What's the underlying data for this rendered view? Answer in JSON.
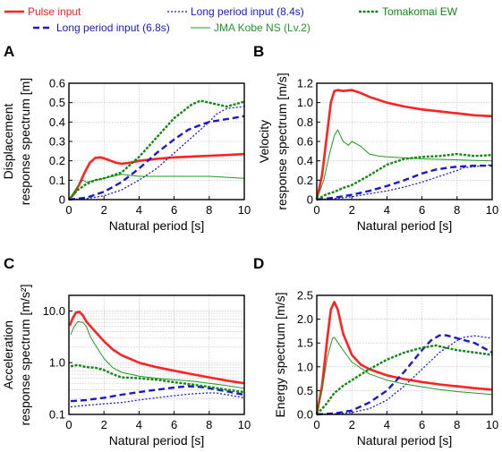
{
  "legend": {
    "entries": [
      {
        "label": "Pulse input",
        "series": "pulse"
      },
      {
        "label": "Long period input (6.8s)",
        "series": "lp68"
      },
      {
        "label": "Long period input (8.4s)",
        "series": "lp84"
      },
      {
        "label": "JMA Kobe NS (Lv.2)",
        "series": "kobe"
      },
      {
        "label": "Tomakomai EW",
        "series": "toma"
      }
    ]
  },
  "styles": {
    "pulse": {
      "color": "#ff2222",
      "width": 2.6,
      "dash": ""
    },
    "lp68": {
      "color": "#1a1acc",
      "width": 2.4,
      "dash": "7,4"
    },
    "lp84": {
      "color": "#1a1acc",
      "width": 1.3,
      "dash": "2,2"
    },
    "kobe": {
      "color": "#229922",
      "width": 1.0,
      "dash": ""
    },
    "toma": {
      "color": "#118811",
      "width": 2.4,
      "dash": "3,1.6"
    }
  },
  "chart_data": [
    {
      "panel": "A",
      "type": "line",
      "xlabel": "Natural period [s]",
      "ylabel": [
        "Displacement",
        "response spectrum [m]"
      ],
      "xlim": [
        0,
        10
      ],
      "ylim": [
        0,
        0.6
      ],
      "yscale": "linear",
      "xticks": [
        0,
        2,
        4,
        6,
        8,
        10
      ],
      "yticks": [
        0,
        0.1,
        0.2,
        0.3,
        0.4,
        0.5,
        0.6
      ],
      "ytick_labels": [
        "0",
        "0.1",
        "0.2",
        "0.3",
        "0.4",
        "0.5",
        "0.6"
      ],
      "grid": true,
      "series": [
        {
          "name": "Pulse input",
          "key": "pulse",
          "x": [
            0,
            0.3,
            0.6,
            0.9,
            1.2,
            1.5,
            1.8,
            2.1,
            2.4,
            2.7,
            3.0,
            3.5,
            4,
            5,
            6,
            7,
            8,
            9,
            10
          ],
          "y": [
            0,
            0.03,
            0.08,
            0.14,
            0.19,
            0.215,
            0.218,
            0.21,
            0.2,
            0.19,
            0.185,
            0.19,
            0.2,
            0.21,
            0.218,
            0.222,
            0.226,
            0.23,
            0.235
          ]
        },
        {
          "name": "Long period input (6.8s)",
          "key": "lp68",
          "x": [
            0,
            1,
            2,
            3,
            4,
            5,
            6,
            6.8,
            7.5,
            8,
            9,
            10
          ],
          "y": [
            0,
            0.01,
            0.04,
            0.09,
            0.16,
            0.24,
            0.31,
            0.36,
            0.385,
            0.4,
            0.415,
            0.43
          ]
        },
        {
          "name": "Long period input (8.4s)",
          "key": "lp84",
          "x": [
            0,
            1,
            2,
            3,
            4,
            5,
            6,
            7,
            8,
            8.4,
            9,
            10
          ],
          "y": [
            0,
            0.005,
            0.02,
            0.05,
            0.1,
            0.16,
            0.24,
            0.32,
            0.4,
            0.44,
            0.47,
            0.48
          ]
        },
        {
          "name": "JMA Kobe NS (Lv.2)",
          "key": "kobe",
          "x": [
            0,
            0.5,
            0.8,
            1,
            1.5,
            2,
            3,
            4,
            5,
            6,
            7,
            8,
            9,
            10
          ],
          "y": [
            0,
            0.07,
            0.1,
            0.09,
            0.1,
            0.11,
            0.13,
            0.12,
            0.12,
            0.12,
            0.12,
            0.12,
            0.115,
            0.11
          ]
        },
        {
          "name": "Tomakomai EW",
          "key": "toma",
          "x": [
            0,
            0.5,
            1,
            1.5,
            2,
            2.5,
            3,
            3.5,
            4,
            5,
            6,
            7,
            7.5,
            8,
            9,
            10
          ],
          "y": [
            0,
            0.05,
            0.08,
            0.1,
            0.11,
            0.125,
            0.14,
            0.18,
            0.22,
            0.32,
            0.42,
            0.49,
            0.51,
            0.5,
            0.48,
            0.505
          ]
        }
      ]
    },
    {
      "panel": "B",
      "type": "line",
      "xlabel": "Natural period [s]",
      "ylabel": [
        "Velocity",
        "response spectrum [m/s]"
      ],
      "xlim": [
        0,
        10
      ],
      "ylim": [
        0,
        1.2
      ],
      "yscale": "linear",
      "xticks": [
        0,
        2,
        4,
        6,
        8,
        10
      ],
      "yticks": [
        0,
        0.2,
        0.4,
        0.6,
        0.8,
        1.0,
        1.2
      ],
      "ytick_labels": [
        "0",
        "0.2",
        "0.4",
        "0.6",
        "0.8",
        "1.0",
        "1.2"
      ],
      "grid": true,
      "series": [
        {
          "name": "Pulse input",
          "key": "pulse",
          "x": [
            0,
            0.3,
            0.6,
            0.8,
            1,
            1.2,
            1.5,
            2,
            2.5,
            3,
            4,
            5,
            6,
            7,
            8,
            9,
            10
          ],
          "y": [
            0,
            0.25,
            0.7,
            1.0,
            1.12,
            1.13,
            1.12,
            1.13,
            1.1,
            1.06,
            1.0,
            0.96,
            0.93,
            0.91,
            0.89,
            0.87,
            0.86
          ]
        },
        {
          "name": "Long period input (6.8s)",
          "key": "lp68",
          "x": [
            0,
            1,
            2,
            3,
            4,
            5,
            6,
            6.8,
            7.5,
            8,
            9,
            10
          ],
          "y": [
            0,
            0.02,
            0.05,
            0.09,
            0.14,
            0.2,
            0.27,
            0.31,
            0.33,
            0.34,
            0.35,
            0.35
          ]
        },
        {
          "name": "Long period input (8.4s)",
          "key": "lp84",
          "x": [
            0,
            1,
            2,
            3,
            4,
            5,
            6,
            7,
            8,
            8.4,
            9,
            10
          ],
          "y": [
            0,
            0.01,
            0.03,
            0.06,
            0.09,
            0.13,
            0.18,
            0.24,
            0.3,
            0.33,
            0.34,
            0.36
          ]
        },
        {
          "name": "JMA Kobe NS (Lv.2)",
          "key": "kobe",
          "x": [
            0,
            0.4,
            0.7,
            1,
            1.2,
            1.5,
            1.8,
            2,
            2.5,
            3,
            3.5,
            4,
            5,
            6,
            8,
            10
          ],
          "y": [
            0,
            0.2,
            0.45,
            0.66,
            0.72,
            0.6,
            0.56,
            0.6,
            0.55,
            0.47,
            0.45,
            0.44,
            0.43,
            0.42,
            0.41,
            0.4
          ]
        },
        {
          "name": "Tomakomai EW",
          "key": "toma",
          "x": [
            0,
            0.5,
            1,
            1.5,
            2,
            3,
            4,
            5,
            6,
            7,
            8,
            9,
            10
          ],
          "y": [
            0,
            0.05,
            0.08,
            0.12,
            0.15,
            0.25,
            0.36,
            0.42,
            0.44,
            0.45,
            0.47,
            0.45,
            0.46
          ]
        }
      ]
    },
    {
      "panel": "C",
      "type": "line",
      "xlabel": "Natural period [s]",
      "ylabel": [
        "Acceleration",
        "response spectrum [m/s²]"
      ],
      "xlim": [
        0,
        10
      ],
      "ylim": [
        0.1,
        20
      ],
      "yscale": "log",
      "xticks": [
        0,
        2,
        4,
        6,
        8,
        10
      ],
      "yticks": [
        0.1,
        1.0,
        10.0
      ],
      "ytick_labels": [
        "0.1",
        "1.0",
        "10.0"
      ],
      "grid": true,
      "series": [
        {
          "name": "Pulse input",
          "key": "pulse",
          "x": [
            0.05,
            0.2,
            0.4,
            0.6,
            0.8,
            1,
            1.5,
            2,
            2.5,
            3,
            4,
            5,
            6,
            7,
            8,
            9,
            10
          ],
          "y": [
            5.2,
            7,
            9.3,
            9.6,
            8.2,
            6.2,
            4,
            2.6,
            1.8,
            1.4,
            1.0,
            0.82,
            0.7,
            0.6,
            0.52,
            0.45,
            0.4
          ]
        },
        {
          "name": "Long period input (6.8s)",
          "key": "lp68",
          "x": [
            0.1,
            1,
            2,
            3,
            4,
            5,
            6,
            6.8,
            7.5,
            8,
            9,
            10
          ],
          "y": [
            0.18,
            0.19,
            0.21,
            0.24,
            0.27,
            0.3,
            0.33,
            0.35,
            0.34,
            0.32,
            0.28,
            0.24
          ]
        },
        {
          "name": "Long period input (8.4s)",
          "key": "lp84",
          "x": [
            0.1,
            1,
            2,
            3,
            4,
            5,
            6,
            7,
            8,
            8.4,
            9,
            10
          ],
          "y": [
            0.14,
            0.15,
            0.16,
            0.17,
            0.19,
            0.21,
            0.23,
            0.25,
            0.26,
            0.26,
            0.24,
            0.21
          ]
        },
        {
          "name": "JMA Kobe NS (Lv.2)",
          "key": "kobe",
          "x": [
            0.1,
            0.3,
            0.5,
            0.8,
            1,
            1.2,
            1.5,
            2,
            2.5,
            3,
            4,
            5,
            6,
            7,
            8,
            9,
            10
          ],
          "y": [
            3.5,
            5,
            6.2,
            6,
            5,
            3.3,
            2.2,
            1.2,
            0.8,
            0.65,
            0.55,
            0.5,
            0.47,
            0.44,
            0.4,
            0.36,
            0.32
          ]
        },
        {
          "name": "Tomakomai EW",
          "key": "toma",
          "x": [
            0.1,
            0.5,
            1,
            1.5,
            2,
            2.5,
            3,
            4,
            5,
            6,
            7,
            8,
            9,
            10
          ],
          "y": [
            0.85,
            0.9,
            0.82,
            0.8,
            0.72,
            0.6,
            0.52,
            0.5,
            0.47,
            0.42,
            0.38,
            0.34,
            0.3,
            0.27
          ]
        }
      ]
    },
    {
      "panel": "D",
      "type": "line",
      "xlabel": "Natural period [s]",
      "ylabel": [
        "Energy spectrum [m/s]"
      ],
      "xlim": [
        0,
        10
      ],
      "ylim": [
        0,
        2.5
      ],
      "yscale": "linear",
      "xticks": [
        0,
        2,
        4,
        6,
        8,
        10
      ],
      "yticks": [
        0,
        0.5,
        1.0,
        1.5,
        2.0,
        2.5
      ],
      "ytick_labels": [
        "0.0",
        "0.5",
        "1.0",
        "1.5",
        "2.0",
        "2.5"
      ],
      "grid": true,
      "series": [
        {
          "name": "Pulse input",
          "key": "pulse",
          "x": [
            0,
            0.3,
            0.6,
            0.8,
            1,
            1.2,
            1.5,
            2,
            2.5,
            3,
            4,
            5,
            6,
            7,
            8,
            9,
            10
          ],
          "y": [
            0,
            0.6,
            1.6,
            2.2,
            2.36,
            2.2,
            1.7,
            1.25,
            1.05,
            0.95,
            0.82,
            0.74,
            0.68,
            0.63,
            0.59,
            0.55,
            0.52
          ]
        },
        {
          "name": "Long period input (6.8s)",
          "key": "lp68",
          "x": [
            0,
            1,
            2,
            3,
            4,
            5,
            6,
            6.5,
            7,
            7.4,
            8,
            9,
            10
          ],
          "y": [
            0,
            0.02,
            0.08,
            0.25,
            0.5,
            0.9,
            1.35,
            1.55,
            1.66,
            1.66,
            1.6,
            1.5,
            1.3
          ]
        },
        {
          "name": "Long period input (8.4s)",
          "key": "lp84",
          "x": [
            0,
            1,
            2,
            3,
            4,
            5,
            6,
            7,
            8,
            8.4,
            9,
            10
          ],
          "y": [
            0,
            0.01,
            0.04,
            0.12,
            0.3,
            0.6,
            0.95,
            1.3,
            1.55,
            1.62,
            1.65,
            1.6
          ]
        },
        {
          "name": "JMA Kobe NS (Lv.2)",
          "key": "kobe",
          "x": [
            0,
            0.3,
            0.6,
            0.9,
            1,
            1.5,
            2,
            3,
            4,
            5,
            6,
            7,
            8,
            9,
            10
          ],
          "y": [
            0,
            0.5,
            1.2,
            1.6,
            1.62,
            1.35,
            1.1,
            0.85,
            0.72,
            0.64,
            0.58,
            0.52,
            0.48,
            0.45,
            0.42
          ]
        },
        {
          "name": "Tomakomai EW",
          "key": "toma",
          "x": [
            0,
            0.5,
            1,
            1.5,
            2,
            3,
            4,
            5,
            6,
            6.8,
            7,
            8,
            9,
            10
          ],
          "y": [
            0,
            0.2,
            0.45,
            0.6,
            0.72,
            0.95,
            1.15,
            1.3,
            1.4,
            1.45,
            1.43,
            1.35,
            1.3,
            1.25
          ]
        }
      ]
    }
  ]
}
